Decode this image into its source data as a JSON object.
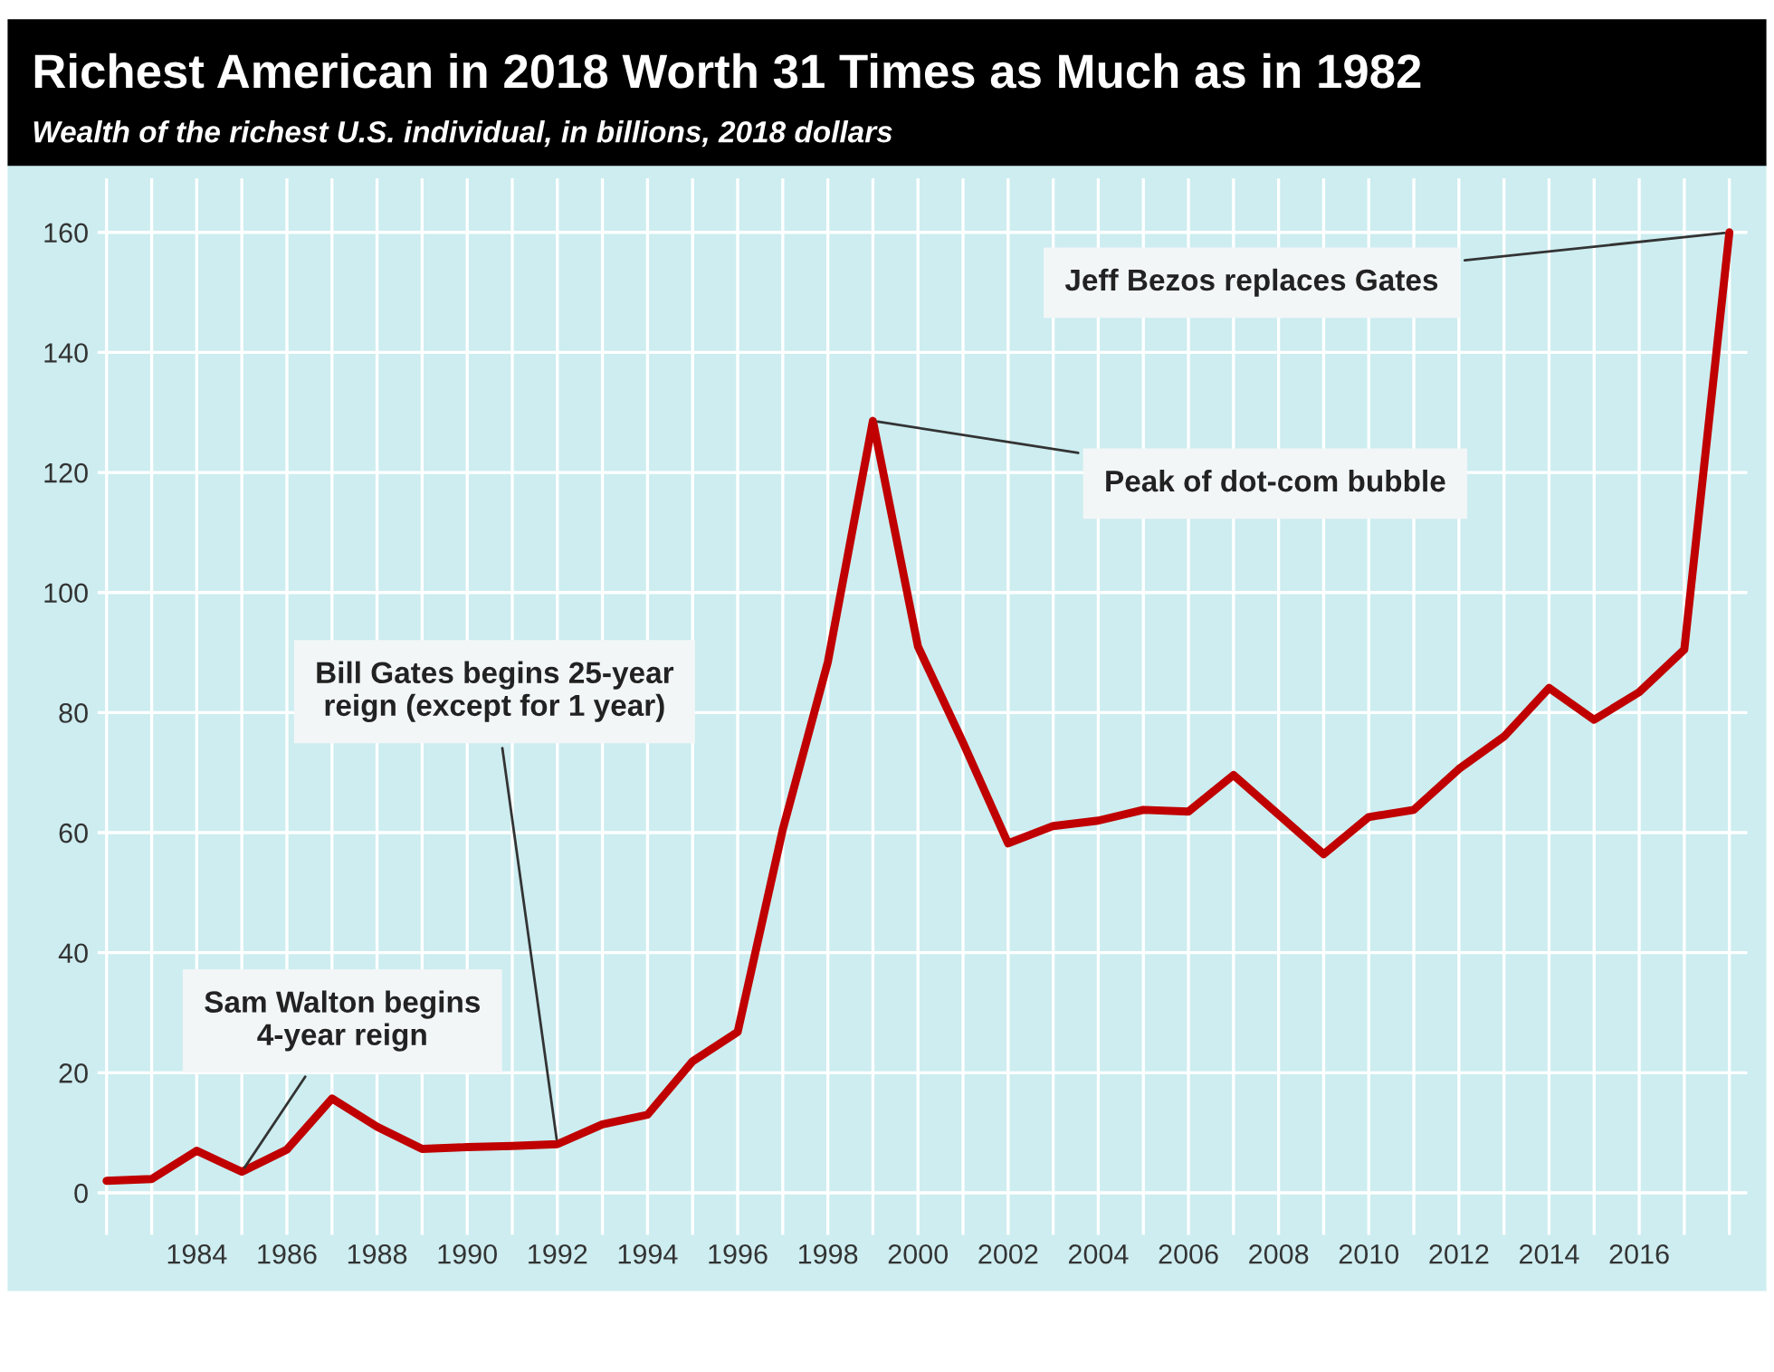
{
  "chart_data": {
    "type": "line",
    "title": "Richest American in 2018 Worth 31 Times as Much as in 1982",
    "subtitle": "Wealth of the richest U.S. individual, in billions, 2018 dollars",
    "x": [
      1982,
      1983,
      1984,
      1985,
      1986,
      1987,
      1988,
      1989,
      1990,
      1991,
      1992,
      1993,
      1994,
      1995,
      1996,
      1997,
      1998,
      1999,
      2000,
      2001,
      2002,
      2003,
      2004,
      2005,
      2006,
      2007,
      2008,
      2009,
      2010,
      2011,
      2012,
      2013,
      2014,
      2015,
      2016,
      2017,
      2018
    ],
    "series": [
      {
        "color": "#c00000",
        "values": [
          2,
          2.3,
          7,
          3.5,
          7.2,
          15.7,
          11,
          7.3,
          7.6,
          7.8,
          8.1,
          11.4,
          13,
          21.9,
          26.8,
          60.5,
          88.4,
          128.6,
          91,
          75,
          58.2,
          61.1,
          62,
          63.8,
          63.5,
          69.6,
          63,
          56.4,
          62.6,
          63.8,
          70.6,
          76,
          84.1,
          78.8,
          83.4,
          90.5,
          160
        ]
      }
    ],
    "xlim": [
      1981.8,
      2018.4
    ],
    "ylim": [
      -7,
      169
    ],
    "xticks": [
      {
        "value": 1982,
        "label": null
      },
      {
        "value": 1983,
        "label": null
      },
      1984,
      {
        "value": 1985,
        "label": null
      },
      1986,
      {
        "value": 1987,
        "label": null
      },
      1988,
      {
        "value": 1989,
        "label": null
      },
      1990,
      {
        "value": 1991,
        "label": null
      },
      1992,
      {
        "value": 1993,
        "label": null
      },
      1994,
      {
        "value": 1995,
        "label": null
      },
      1996,
      {
        "value": 1997,
        "label": null
      },
      1998,
      {
        "value": 1999,
        "label": null
      },
      2000,
      {
        "value": 2001,
        "label": null
      },
      2002,
      {
        "value": 2003,
        "label": null
      },
      2004,
      {
        "value": 2005,
        "label": null
      },
      2006,
      {
        "value": 2007,
        "label": null
      },
      2008,
      {
        "value": 2009,
        "label": null
      },
      2010,
      {
        "value": 2011,
        "label": null
      },
      2012,
      {
        "value": 2013,
        "label": null
      },
      2014,
      {
        "value": 2015,
        "label": null
      },
      2016,
      {
        "value": 2017,
        "label": null
      },
      {
        "value": 2018,
        "label": null
      }
    ],
    "yticks": [
      0,
      20,
      40,
      60,
      80,
      100,
      120,
      140,
      160
    ],
    "grid": true,
    "line_style": "solid",
    "marker": "none",
    "annotations": [
      {
        "text": "Sam Walton begins\n4-year reign",
        "x": 1985,
        "y": 3.5
      },
      {
        "text": "Bill Gates begins 25-year\nreign (except for 1 year)",
        "x": 1992,
        "y": 8.1
      },
      {
        "text": "Peak of dot-com bubble",
        "x": 1999,
        "y": 128.6
      },
      {
        "text": "Jeff Bezos replaces Gates",
        "x": 2018,
        "y": 160
      }
    ]
  }
}
